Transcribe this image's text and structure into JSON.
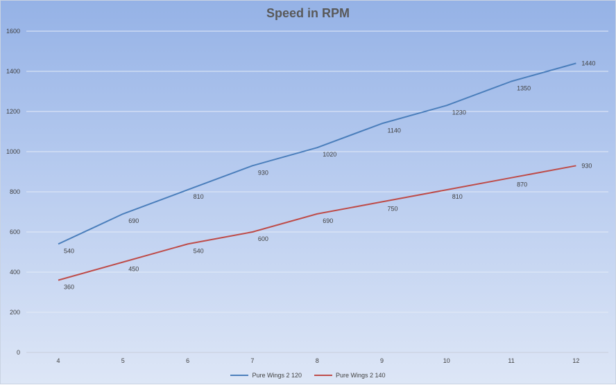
{
  "chart_data": {
    "type": "line",
    "title": "Speed in RPM",
    "xlabel": "",
    "ylabel": "",
    "x": [
      4,
      5,
      6,
      7,
      8,
      9,
      10,
      11,
      12
    ],
    "ylim": [
      0,
      1600
    ],
    "yticks": [
      0,
      200,
      400,
      600,
      800,
      1000,
      1200,
      1400,
      1600
    ],
    "grid": true,
    "legend": "bottom",
    "series": [
      {
        "name": "Pure Wings 2 120",
        "color": "#4a7ebb",
        "values": [
          540,
          690,
          810,
          930,
          1020,
          1140,
          1230,
          1350,
          1440
        ]
      },
      {
        "name": "Pure Wings 2 140",
        "color": "#be4b48",
        "values": [
          360,
          450,
          540,
          600,
          690,
          750,
          810,
          870,
          930
        ]
      }
    ]
  }
}
